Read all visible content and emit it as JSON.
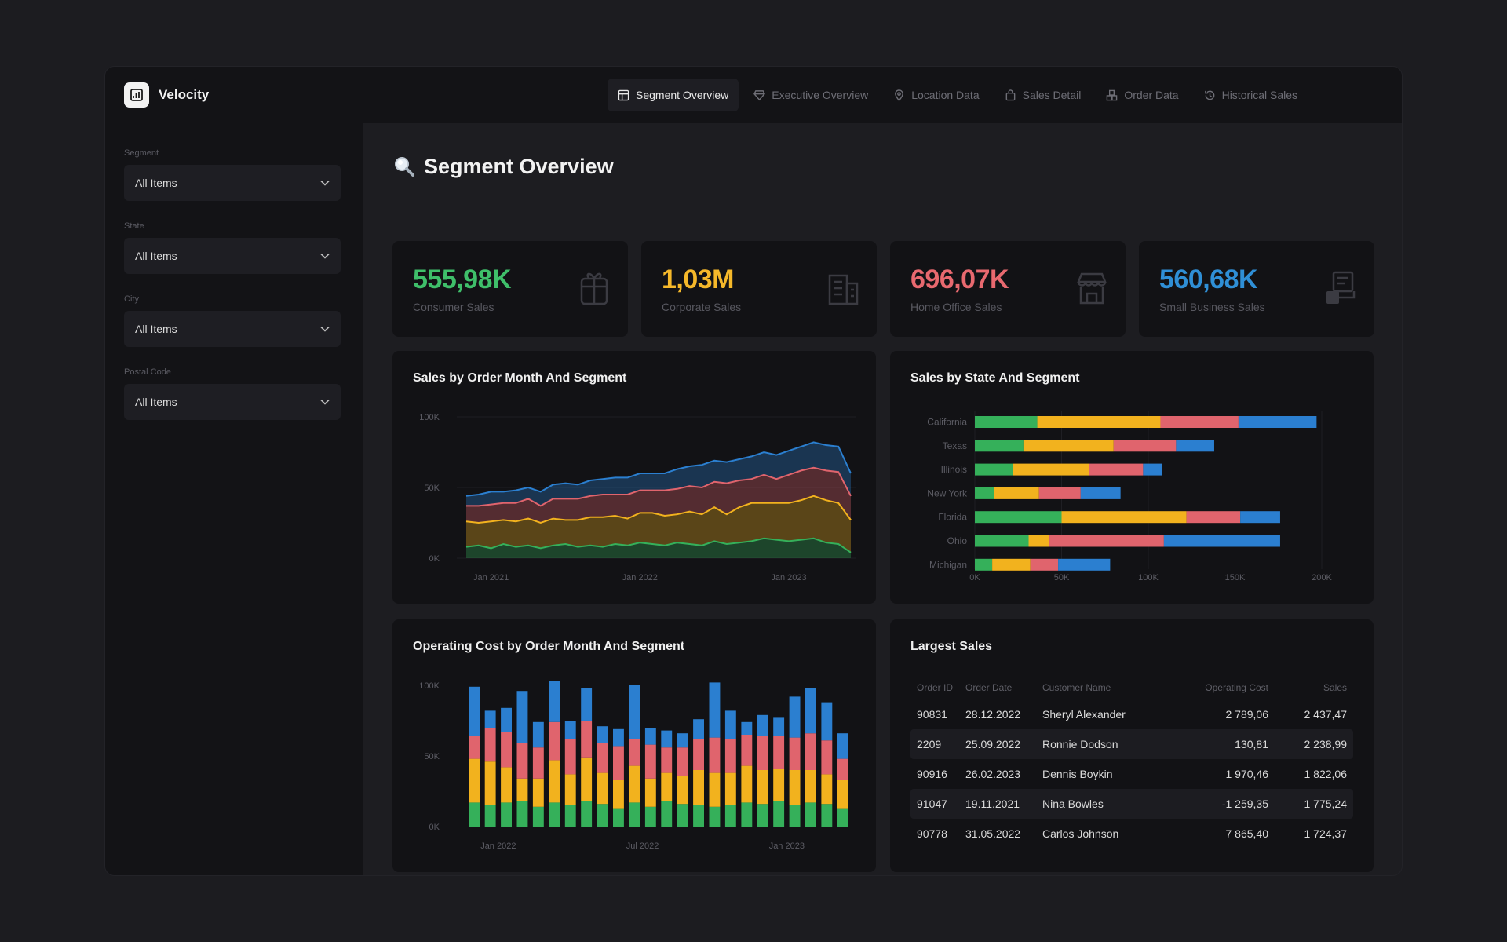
{
  "app": {
    "name": "Velocity"
  },
  "tabs": [
    {
      "label": "Segment Overview",
      "icon": "dashboard-icon",
      "active": true
    },
    {
      "label": "Executive Overview",
      "icon": "diamond-icon",
      "active": false
    },
    {
      "label": "Location Data",
      "icon": "location-pin-icon",
      "active": false
    },
    {
      "label": "Sales Detail",
      "icon": "shopping-bag-icon",
      "active": false
    },
    {
      "label": "Order Data",
      "icon": "boxes-icon",
      "active": false
    },
    {
      "label": "Historical Sales",
      "icon": "history-icon",
      "active": false
    }
  ],
  "filters": [
    {
      "label": "Segment",
      "value": "All Items"
    },
    {
      "label": "State",
      "value": "All Items"
    },
    {
      "label": "City",
      "value": "All Items"
    },
    {
      "label": "Postal Code",
      "value": "All Items"
    }
  ],
  "page": {
    "title": "Segment Overview",
    "icon": "magnifier-icon"
  },
  "kpis": [
    {
      "value": "555,98K",
      "label": "Consumer Sales",
      "color": "#3fbf6a",
      "icon": "gift-icon"
    },
    {
      "value": "1,03M",
      "label": "Corporate Sales",
      "color": "#f5b82a",
      "icon": "building-icon"
    },
    {
      "value": "696,07K",
      "label": "Home Office Sales",
      "color": "#e8696f",
      "icon": "store-icon"
    },
    {
      "value": "560,68K",
      "label": "Small Business Sales",
      "color": "#2f8fd6",
      "icon": "cash-register-icon"
    }
  ],
  "colors": {
    "green": "#35b05a",
    "yellow": "#f2b21e",
    "red": "#e0646d",
    "blue": "#2b7fd0"
  },
  "charts": {
    "area": {
      "title": "Sales by Order Month And Segment",
      "chart_data": {
        "type": "area",
        "stacked": true,
        "y_ticks": [
          "100K",
          "50K",
          "0K"
        ],
        "ylim": [
          0,
          100000
        ],
        "x_ticks": [
          "Jan 2021",
          "Jan 2022",
          "Jan 2023"
        ],
        "months": [
          "Nov 2020",
          "Dec 2020",
          "Jan 2021",
          "Feb 2021",
          "Mar 2021",
          "Apr 2021",
          "May 2021",
          "Jun 2021",
          "Jul 2021",
          "Aug 2021",
          "Sep 2021",
          "Oct 2021",
          "Nov 2021",
          "Dec 2021",
          "Jan 2022",
          "Feb 2022",
          "Mar 2022",
          "Apr 2022",
          "May 2022",
          "Jun 2022",
          "Jul 2022",
          "Aug 2022",
          "Sep 2022",
          "Oct 2022",
          "Nov 2022",
          "Dec 2022",
          "Jan 2023",
          "Feb 2023",
          "Mar 2023",
          "Apr 2023",
          "May 2023",
          "Jun 2023"
        ],
        "series": [
          {
            "color": "#35b05a",
            "values": [
              8,
              9,
              7,
              10,
              8,
              9,
              7,
              9,
              10,
              8,
              9,
              8,
              10,
              9,
              11,
              10,
              9,
              11,
              10,
              9,
              12,
              10,
              11,
              12,
              14,
              13,
              12,
              13,
              14,
              11,
              10,
              4
            ]
          },
          {
            "color": "#f2b21e",
            "values": [
              18,
              16,
              19,
              17,
              18,
              19,
              18,
              19,
              17,
              19,
              20,
              21,
              20,
              19,
              21,
              22,
              21,
              20,
              23,
              22,
              24,
              21,
              25,
              27,
              25,
              26,
              27,
              28,
              30,
              30,
              29,
              23
            ]
          },
          {
            "color": "#e0646d",
            "values": [
              11,
              12,
              12,
              12,
              13,
              14,
              12,
              14,
              15,
              15,
              15,
              16,
              15,
              17,
              16,
              16,
              18,
              18,
              18,
              19,
              18,
              22,
              19,
              17,
              20,
              17,
              20,
              21,
              20,
              21,
              22,
              17
            ]
          },
          {
            "color": "#2b7fd0",
            "values": [
              7,
              8,
              9,
              8,
              9,
              8,
              10,
              10,
              11,
              10,
              11,
              11,
              12,
              12,
              12,
              12,
              12,
              14,
              14,
              16,
              15,
              15,
              15,
              16,
              16,
              17,
              17,
              17,
              18,
              18,
              18,
              16
            ]
          }
        ]
      }
    },
    "hbar": {
      "title": "Sales by State And Segment",
      "chart_data": {
        "type": "bar",
        "orientation": "horizontal",
        "stacked": true,
        "categories": [
          "California",
          "Texas",
          "Illinois",
          "New York",
          "Florida",
          "Ohio",
          "Michigan"
        ],
        "x_ticks": [
          "0K",
          "50K",
          "100K",
          "150K",
          "200K"
        ],
        "xlim": [
          0,
          200000
        ],
        "series": [
          {
            "color": "#35b05a",
            "values": [
              36000,
              28000,
              22000,
              11000,
              50000,
              31000,
              10000
            ]
          },
          {
            "color": "#f2b21e",
            "values": [
              71000,
              52000,
              44000,
              26000,
              72000,
              12000,
              22000
            ]
          },
          {
            "color": "#e0646d",
            "values": [
              45000,
              36000,
              31000,
              24000,
              31000,
              66000,
              16000
            ]
          },
          {
            "color": "#2b7fd0",
            "values": [
              45000,
              22000,
              11000,
              23000,
              23000,
              67000,
              30000
            ]
          }
        ]
      }
    },
    "vbar": {
      "title": "Operating Cost by Order Month And Segment",
      "chart_data": {
        "type": "bar",
        "orientation": "vertical",
        "stacked": true,
        "y_ticks": [
          "100K",
          "50K",
          "0K"
        ],
        "ylim": [
          0,
          100000
        ],
        "x_ticks": [
          "Jan 2022",
          "Jul 2022",
          "Jan 2023"
        ],
        "series": [
          {
            "color": "#35b05a",
            "values": [
              17,
              15,
              17,
              18,
              14,
              17,
              15,
              18,
              16,
              13,
              17,
              14,
              18,
              16,
              15,
              14,
              15,
              17,
              16,
              18,
              15,
              17,
              16,
              13
            ]
          },
          {
            "color": "#f2b21e",
            "values": [
              31,
              31,
              25,
              16,
              20,
              30,
              22,
              31,
              22,
              20,
              26,
              20,
              20,
              20,
              25,
              24,
              23,
              26,
              24,
              23,
              25,
              23,
              21,
              20
            ]
          },
          {
            "color": "#e0646d",
            "values": [
              16,
              24,
              25,
              25,
              22,
              27,
              25,
              26,
              21,
              24,
              19,
              24,
              18,
              20,
              22,
              25,
              24,
              22,
              24,
              23,
              23,
              26,
              24,
              15
            ]
          },
          {
            "color": "#2b7fd0",
            "values": [
              35,
              12,
              17,
              37,
              18,
              29,
              13,
              23,
              12,
              12,
              38,
              12,
              12,
              10,
              14,
              39,
              20,
              9,
              15,
              13,
              29,
              32,
              27,
              18
            ]
          }
        ]
      }
    }
  },
  "table": {
    "title": "Largest Sales",
    "columns": [
      "Order ID",
      "Order Date",
      "Customer Name",
      "Operating Cost",
      "Sales"
    ],
    "rows": [
      [
        "90831",
        "28.12.2022",
        "Sheryl Alexander",
        "2 789,06",
        "2 437,47"
      ],
      [
        "2209",
        "25.09.2022",
        "Ronnie Dodson",
        "130,81",
        "2 238,99"
      ],
      [
        "90916",
        "26.02.2023",
        "Dennis Boykin",
        "1 970,46",
        "1 822,06"
      ],
      [
        "91047",
        "19.11.2021",
        "Nina Bowles",
        "-1 259,35",
        "1 775,24"
      ],
      [
        "90778",
        "31.05.2022",
        "Carlos Johnson",
        "7 865,40",
        "1 724,37"
      ]
    ]
  }
}
